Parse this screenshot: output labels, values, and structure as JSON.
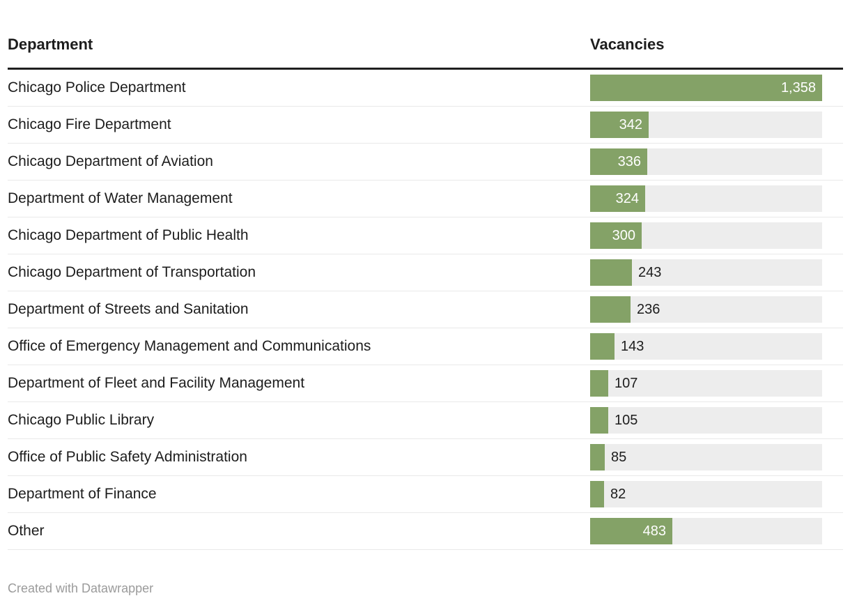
{
  "header": {
    "department_label": "Department",
    "vacancies_label": "Vacancies"
  },
  "footer": {
    "attribution": "Created with Datawrapper"
  },
  "colors": {
    "bar_fill": "#84a267",
    "bar_track": "#ededed",
    "label_inside": "#ffffff",
    "label_outside": "#1d1d1d",
    "header_rule": "#1f1f1f",
    "row_divider": "#e9e9e9",
    "footer_text": "#9b9b9b"
  },
  "chart_data": {
    "type": "bar",
    "orientation": "horizontal",
    "title": "",
    "xlabel": "Department",
    "ylabel": "Vacancies",
    "xmax": 1358,
    "grid": false,
    "legend": false,
    "categories": [
      "Chicago Police Department",
      "Chicago Fire Department",
      "Chicago Department of Aviation",
      "Department of Water Management",
      "Chicago Department of Public Health",
      "Chicago Department of Transportation",
      "Department of Streets and Sanitation",
      "Office of Emergency Management and Communications",
      "Department of Fleet and Facility Management",
      "Chicago Public Library",
      "Office of Public Safety Administration",
      "Department of Finance",
      "Other"
    ],
    "values": [
      1358,
      342,
      336,
      324,
      300,
      243,
      236,
      143,
      107,
      105,
      85,
      82,
      483
    ],
    "value_labels": [
      "1,358",
      "342",
      "336",
      "324",
      "300",
      "243",
      "236",
      "143",
      "107",
      "105",
      "85",
      "82",
      "483"
    ]
  }
}
